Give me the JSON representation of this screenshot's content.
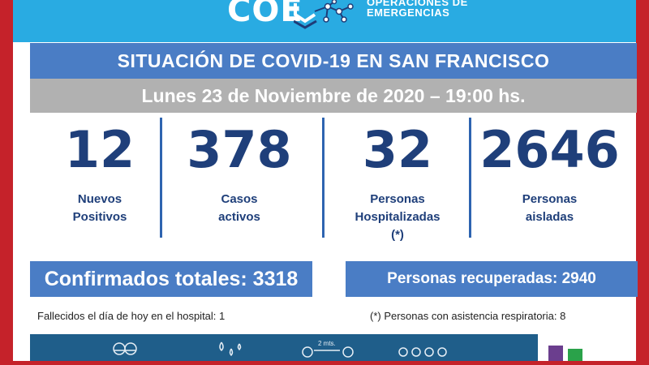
{
  "logo": {
    "letters": "COE",
    "ops_line1": "OPERACIONES DE",
    "ops_line2": "EMERGENCIAS"
  },
  "title": "SITUACIÓN DE COVID-19 EN SAN FRANCISCO",
  "date": "Lunes 23 de Noviembre de 2020 – 19:00 hs.",
  "stats": [
    {
      "value": "12",
      "label_line1": "Nuevos",
      "label_line2": "Positivos",
      "label_line3": ""
    },
    {
      "value": "378",
      "label_line1": "Casos",
      "label_line2": "activos",
      "label_line3": ""
    },
    {
      "value": "32",
      "label_line1": "Personas",
      "label_line2": "Hospitalizadas",
      "label_line3": "(*)"
    },
    {
      "value": "2646",
      "label_line1": "Personas",
      "label_line2": "aisladas",
      "label_line3": ""
    }
  ],
  "confirmed_total": "Confirmados totales: 3318",
  "recovered": "Personas recuperadas: 2940",
  "notes": {
    "deaths": "Fallecidos el día de hoy en el hospital: 1",
    "respiratory": "(*) Personas con asistencia respiratoria: 8"
  },
  "bottom": {
    "distance_label": "2 mts."
  },
  "colors": {
    "frame_red": "#c5222a",
    "banner_blue": "#29abe2",
    "title_blue": "#4a7dc5",
    "date_gray": "#b1b1b1",
    "number_navy": "#1f3f7a"
  }
}
